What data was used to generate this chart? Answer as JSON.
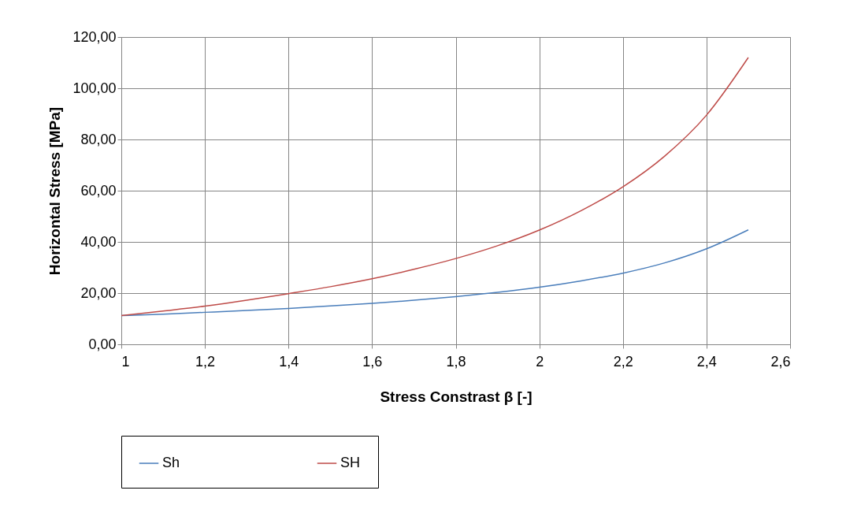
{
  "chart_data": {
    "type": "line",
    "xlabel": "Stress Constrast β [-]",
    "ylabel": "Horizontal Stress [MPa]",
    "x": [
      1.0,
      1.1,
      1.2,
      1.3,
      1.4,
      1.5,
      1.6,
      1.7,
      1.8,
      1.9,
      2.0,
      2.1,
      2.2,
      2.3,
      2.4,
      2.5
    ],
    "series": [
      {
        "name": "Sh",
        "color": "#4a7ebb",
        "values": [
          11.2,
          11.8,
          12.5,
          13.2,
          14,
          15,
          16,
          17.2,
          18.6,
          20.3,
          22.3,
          24.8,
          27.8,
          31.8,
          37.3,
          44.7
        ]
      },
      {
        "name": "SH",
        "color": "#be4b48",
        "values": [
          11.2,
          13,
          14.9,
          17.2,
          19.8,
          22.5,
          25.6,
          29.3,
          33.5,
          38.5,
          44.6,
          52.2,
          61.5,
          73.5,
          89.5,
          112
        ]
      }
    ],
    "xlim": [
      1,
      2.6
    ],
    "xticks": [
      1,
      {
        "value": 1.2,
        "label": "1,2"
      },
      {
        "value": 1.4,
        "label": "1,4"
      },
      {
        "value": 1.6,
        "label": "1,6"
      },
      {
        "value": 1.8,
        "label": "1,8"
      },
      2,
      {
        "value": 2.2,
        "label": "2,2"
      },
      {
        "value": 2.4,
        "label": "2,4"
      },
      {
        "value": 2.6,
        "label": "2,6"
      }
    ],
    "ylim": [
      0,
      120
    ],
    "yticks": [
      {
        "value": 0,
        "label": "0,00"
      },
      {
        "value": 20,
        "label": "20,00"
      },
      {
        "value": 40,
        "label": "40,00"
      },
      {
        "value": 60,
        "label": "60,00"
      },
      {
        "value": 80,
        "label": "80,00"
      },
      {
        "value": 100,
        "label": "100,00"
      },
      {
        "value": 120,
        "label": "120,00"
      }
    ],
    "grid": true,
    "legend": "bottom",
    "marker": "none",
    "line_style": "solid"
  }
}
